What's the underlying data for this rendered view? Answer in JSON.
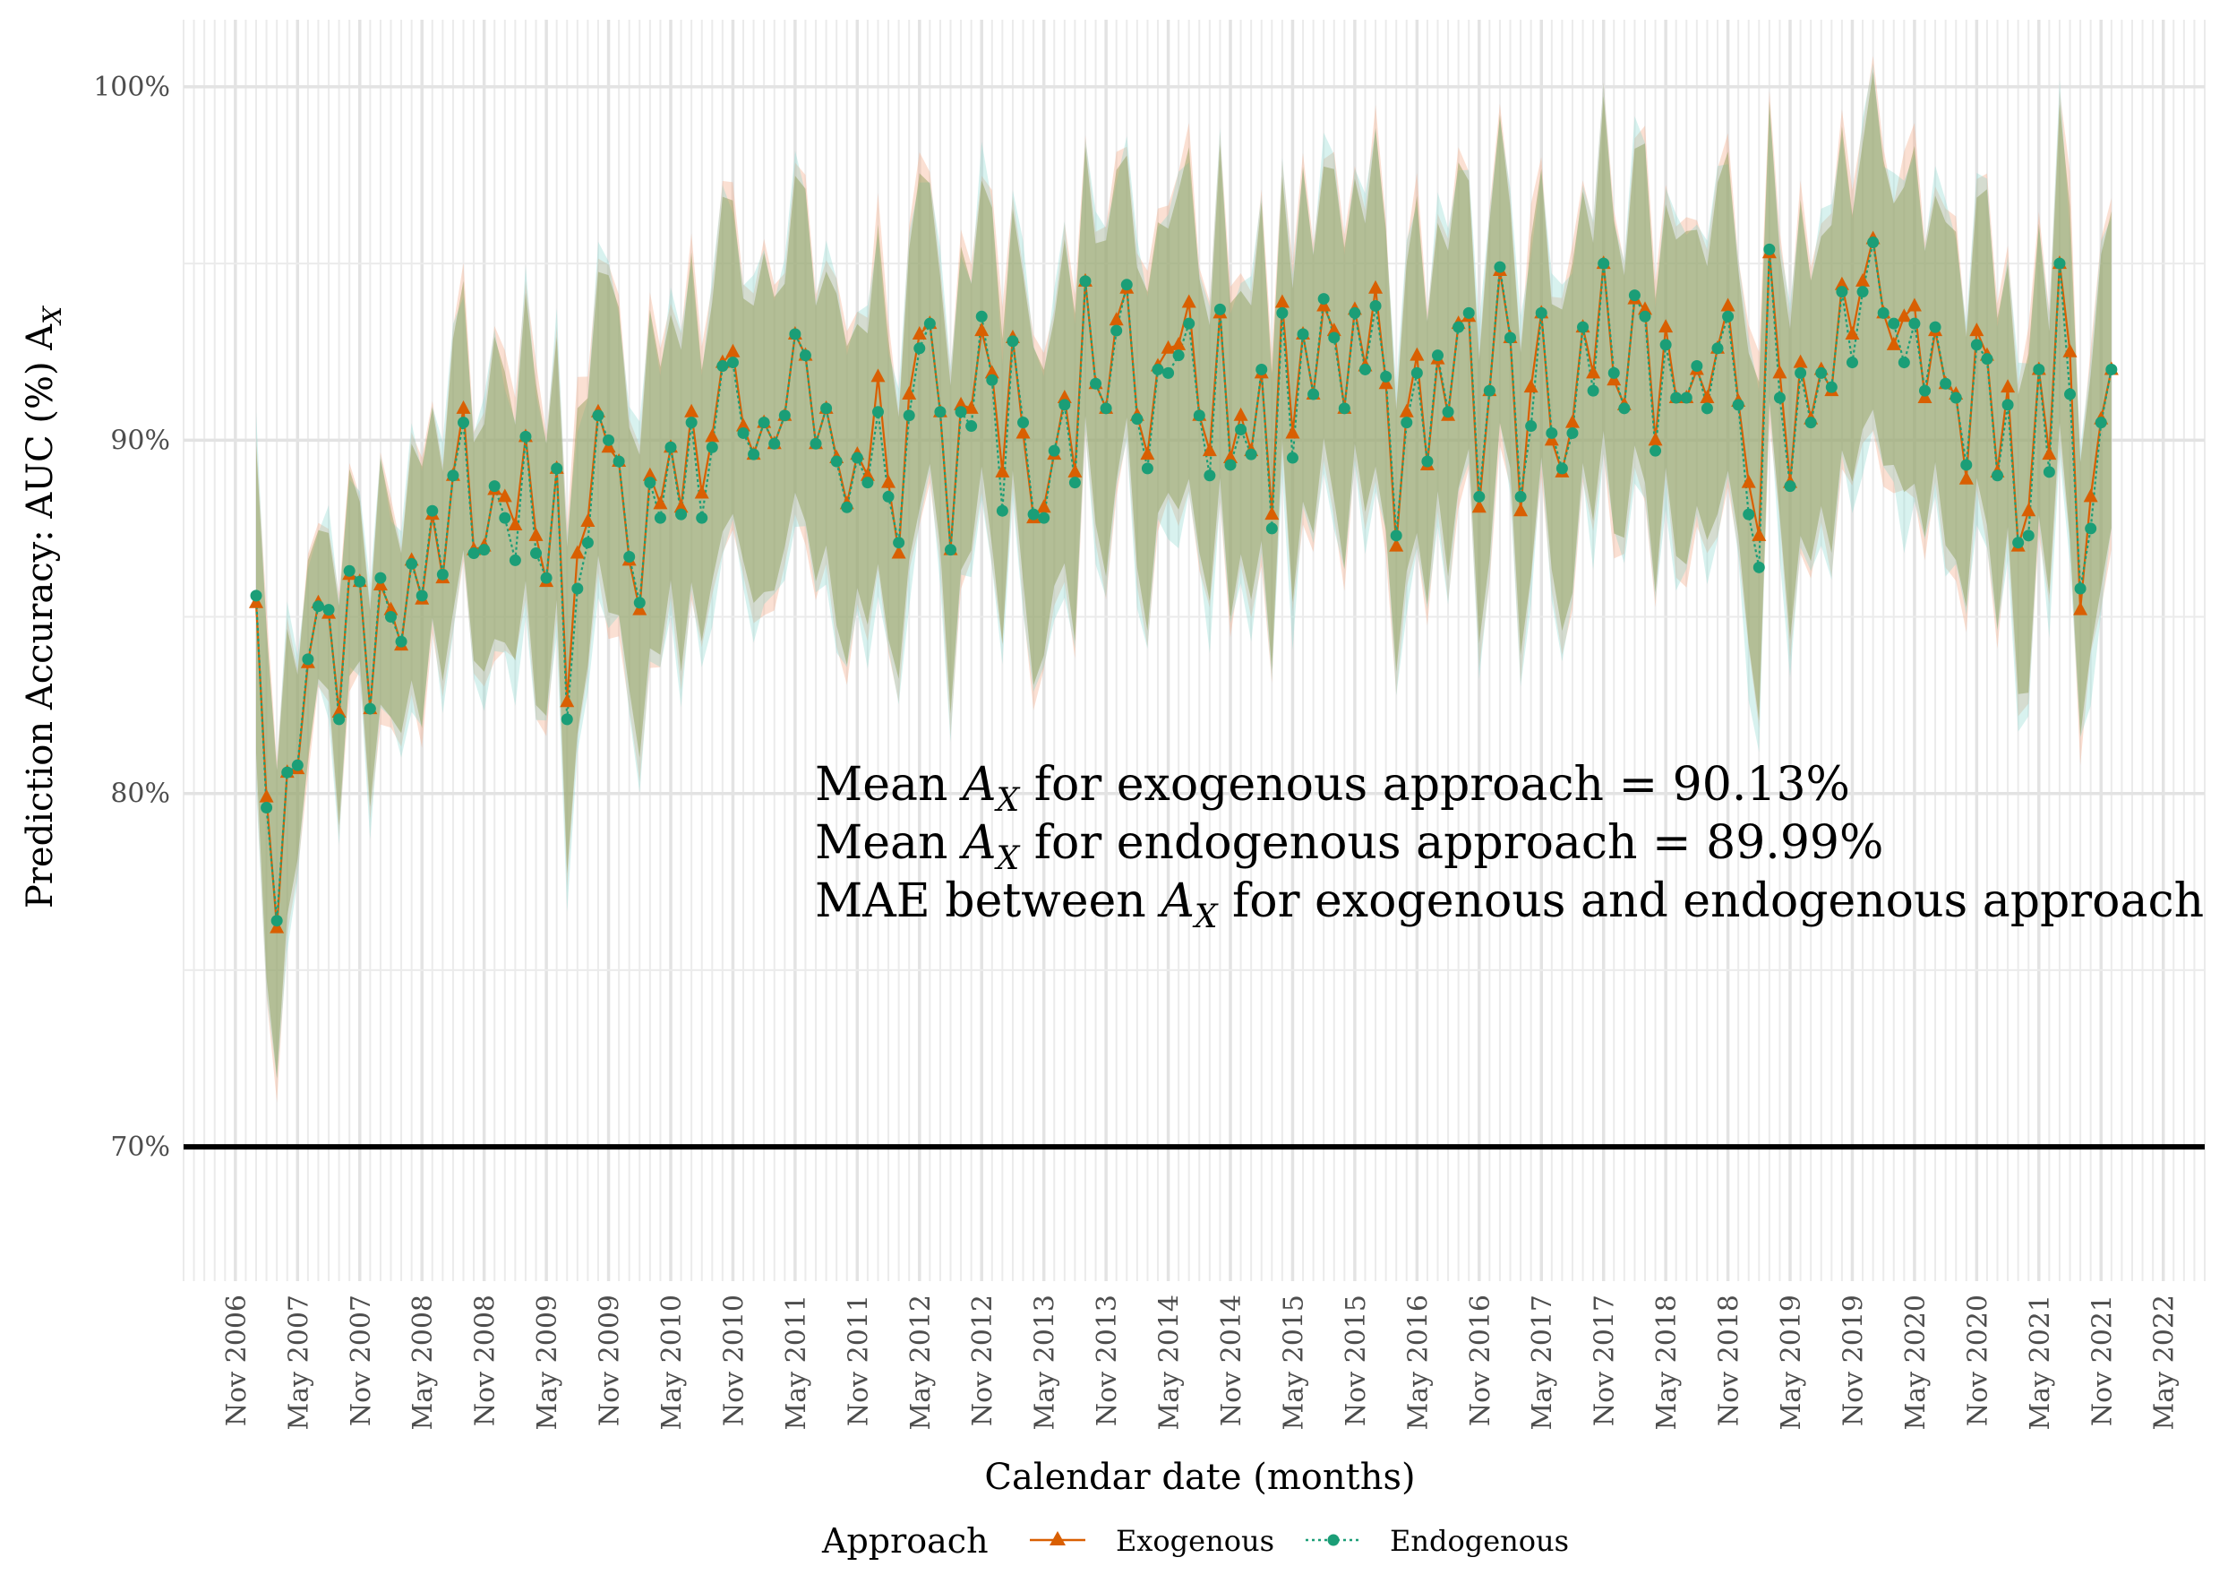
{
  "chart_data": {
    "type": "line",
    "xlabel": "Calendar date (months)",
    "ylabel": "Prediction Accuracy: AUC (%) A",
    "ylabel_subscript": "X",
    "y_tick_labels": [
      "70%",
      "80%",
      "90%",
      "100%"
    ],
    "y_ticks": [
      70,
      80,
      90,
      100
    ],
    "ylim": [
      66.2,
      101.9
    ],
    "xlim": [
      "2006-06",
      "2022-09"
    ],
    "x_tick_labels": [
      "Nov 2006",
      "May 2007",
      "Nov 2007",
      "May 2008",
      "Nov 2008",
      "May 2009",
      "Nov 2009",
      "May 2010",
      "Nov 2010",
      "May 2011",
      "Nov 2011",
      "May 2012",
      "Nov 2012",
      "May 2013",
      "Nov 2013",
      "May 2014",
      "Nov 2014",
      "May 2015",
      "Nov 2015",
      "May 2016",
      "Nov 2016",
      "May 2017",
      "Nov 2017",
      "May 2018",
      "Nov 2018",
      "May 2019",
      "Nov 2019",
      "May 2020",
      "Nov 2020",
      "May 2021",
      "Nov 2021",
      "May 2022"
    ],
    "x_ticks": [
      "2006-11",
      "2007-05",
      "2007-11",
      "2008-05",
      "2008-11",
      "2009-05",
      "2009-11",
      "2010-05",
      "2010-11",
      "2011-05",
      "2011-11",
      "2012-05",
      "2012-11",
      "2013-05",
      "2013-11",
      "2014-05",
      "2014-11",
      "2015-05",
      "2015-11",
      "2016-05",
      "2016-11",
      "2017-05",
      "2017-11",
      "2018-05",
      "2018-11",
      "2019-05",
      "2019-11",
      "2020-05",
      "2020-11",
      "2021-05",
      "2021-11",
      "2022-05"
    ],
    "reference_line": {
      "y": 70,
      "color": "#000000"
    },
    "grid": true,
    "legend": {
      "title": "Approach",
      "placement": "bottom",
      "entries": [
        "Exogenous",
        "Endogenous"
      ]
    },
    "annotations": [
      {
        "pre": "Mean ",
        "var": "A",
        "sub": "X",
        "post": " for exogenous approach = 90.13%"
      },
      {
        "pre": "Mean ",
        "var": "A",
        "sub": "X",
        "post": " for endogenous approach = 89.99%"
      },
      {
        "pre": "MAE between ",
        "var": "A",
        "sub": "X",
        "post": " for exogenous and endogenous approach"
      }
    ],
    "series": [
      {
        "name": "Exogenous",
        "color": "#D95F02",
        "marker": "triangle",
        "linestyle": "solid",
        "band_color": "#F4A582",
        "x_start": "2007-01",
        "values": [
          85.4,
          79.9,
          76.2,
          80.6,
          80.7,
          83.7,
          85.4,
          85.1,
          82.3,
          86.2,
          86.0,
          82.4,
          85.9,
          85.2,
          84.2,
          86.6,
          85.5,
          87.9,
          86.1,
          89.0,
          90.9,
          86.9,
          87.0,
          88.6,
          88.4,
          87.6,
          90.1,
          87.3,
          86.0,
          89.2,
          82.6,
          86.8,
          87.7,
          90.8,
          89.8,
          89.4,
          86.6,
          85.2,
          89.0,
          88.2,
          89.8,
          88.1,
          90.8,
          88.5,
          90.1,
          92.2,
          92.5,
          90.4,
          89.6,
          90.5,
          89.9,
          90.7,
          93.0,
          92.4,
          89.9,
          90.9,
          89.5,
          88.2,
          89.6,
          89.0,
          91.8,
          88.8,
          86.8,
          91.3,
          93.0,
          93.3,
          90.8,
          86.9,
          91.0,
          90.9,
          93.1,
          91.9,
          89.1,
          92.9,
          90.2,
          87.8,
          88.1,
          89.6,
          91.2,
          89.1,
          94.5,
          91.6,
          90.9,
          93.4,
          94.3,
          90.7,
          89.6,
          92.1,
          92.6,
          92.7,
          93.9,
          90.7,
          89.7,
          93.6,
          89.5,
          90.7,
          89.7,
          91.9,
          87.9,
          93.9,
          90.2,
          93.0,
          91.3,
          93.8,
          93.1,
          90.9,
          93.7,
          92.1,
          94.3,
          91.6,
          87.0,
          90.8,
          92.4,
          89.3,
          92.3,
          90.7,
          93.3,
          93.5,
          88.1,
          91.4,
          94.8,
          92.9,
          88.0,
          91.5,
          93.6,
          90.0,
          89.1,
          90.5,
          93.2,
          91.9,
          95.0,
          91.7,
          91.0,
          94.0,
          93.7,
          90.0,
          93.2,
          91.2,
          91.2,
          92.0,
          91.2,
          92.6,
          93.8,
          91.1,
          88.8,
          87.3,
          95.3,
          91.9,
          88.8,
          92.2,
          90.6,
          92.0,
          91.4,
          94.4,
          93.0,
          94.5,
          95.7,
          93.6,
          92.7,
          93.5,
          93.8,
          91.2,
          93.1,
          91.6,
          91.3,
          88.9,
          93.1,
          92.4,
          89.1,
          91.5,
          87.0,
          88.0,
          92.0,
          89.6,
          95.0,
          92.5,
          85.2,
          88.4,
          90.6,
          92.0
        ]
      },
      {
        "name": "Endogenous",
        "color": "#1B9E77",
        "marker": "circle",
        "linestyle": "dotted",
        "band_color": "#7FD3C9",
        "x_start": "2007-01",
        "values": [
          85.6,
          79.6,
          76.4,
          80.6,
          80.8,
          83.8,
          85.3,
          85.2,
          82.1,
          86.3,
          86.0,
          82.4,
          86.1,
          85.0,
          84.3,
          86.5,
          85.6,
          88.0,
          86.2,
          89.0,
          90.5,
          86.8,
          86.9,
          88.7,
          87.8,
          86.6,
          90.1,
          86.8,
          86.1,
          89.2,
          82.1,
          85.8,
          87.1,
          90.7,
          90.0,
          89.4,
          86.7,
          85.4,
          88.8,
          87.8,
          89.8,
          87.9,
          90.5,
          87.8,
          89.8,
          92.1,
          92.2,
          90.2,
          89.6,
          90.5,
          89.9,
          90.7,
          93.0,
          92.4,
          89.9,
          90.9,
          89.4,
          88.1,
          89.5,
          88.8,
          90.8,
          88.4,
          87.1,
          90.7,
          92.6,
          93.3,
          90.8,
          86.9,
          90.8,
          90.4,
          93.5,
          91.7,
          88.0,
          92.8,
          90.5,
          87.9,
          87.8,
          89.7,
          91.0,
          88.8,
          94.5,
          91.6,
          90.9,
          93.1,
          94.4,
          90.6,
          89.2,
          92.0,
          91.9,
          92.4,
          93.3,
          90.7,
          89.0,
          93.7,
          89.3,
          90.3,
          89.6,
          92.0,
          87.5,
          93.6,
          89.5,
          93.0,
          91.3,
          94.0,
          92.9,
          90.9,
          93.6,
          92.0,
          93.8,
          91.8,
          87.3,
          90.5,
          91.9,
          89.4,
          92.4,
          90.8,
          93.2,
          93.6,
          88.4,
          91.4,
          94.9,
          92.9,
          88.4,
          90.4,
          93.6,
          90.2,
          89.2,
          90.2,
          93.2,
          91.4,
          95.0,
          91.9,
          90.9,
          94.1,
          93.5,
          89.7,
          92.7,
          91.2,
          91.2,
          92.1,
          90.9,
          92.6,
          93.5,
          91.0,
          87.9,
          86.4,
          95.4,
          91.2,
          88.7,
          91.9,
          90.5,
          91.9,
          91.5,
          94.2,
          92.2,
          94.2,
          95.6,
          93.6,
          93.3,
          92.2,
          93.3,
          91.4,
          93.2,
          91.6,
          91.2,
          89.3,
          92.7,
          92.3,
          89.0,
          91.0,
          87.1,
          87.3,
          92.0,
          89.1,
          95.0,
          91.3,
          85.8,
          87.5,
          90.5,
          92.0
        ]
      }
    ]
  }
}
